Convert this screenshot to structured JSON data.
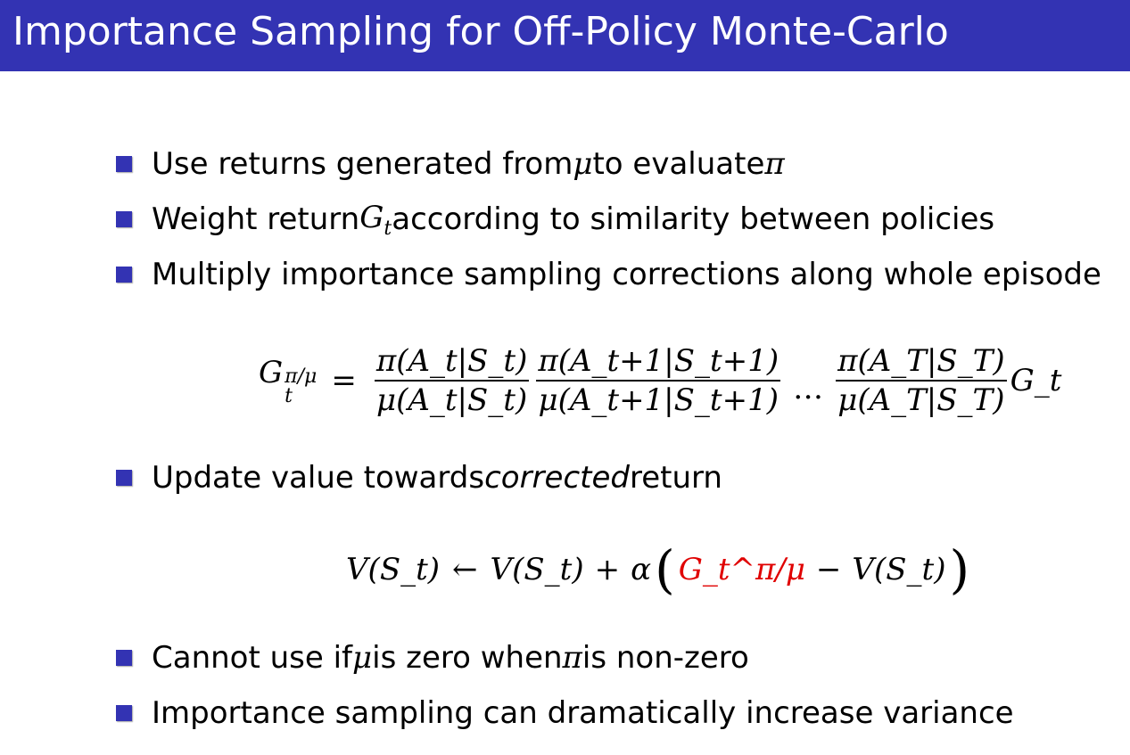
{
  "header": {
    "title": "Importance Sampling for Off-Policy Monte-Carlo"
  },
  "bullets_top": [
    {
      "pre": "Use returns generated from ",
      "sym1": "μ",
      "mid": " to evaluate ",
      "sym2": "π"
    },
    {
      "pre": "Weight return ",
      "sym1": "G",
      "sym1_sub": "t",
      "post": " according to similarity between policies"
    },
    {
      "text": "Multiply importance sampling corrections along whole episode"
    }
  ],
  "equation1": {
    "lhs": "G",
    "lhs_sub": "t",
    "lhs_sup": "π/μ",
    "equals": "=",
    "frac1_num": "π(A_t|S_t)",
    "frac1_den": "μ(A_t|S_t)",
    "frac2_num": "π(A_t+1|S_t+1)",
    "frac2_den": "μ(A_t+1|S_t+1)",
    "dots": "…",
    "frac3_num": "π(A_T|S_T)",
    "frac3_den": "μ(A_T|S_T)",
    "tail": "G_t"
  },
  "bullet_mid": {
    "pre": "Update value towards ",
    "emph": "corrected",
    "post": " return"
  },
  "equation2": {
    "lhs": "V(S_t)",
    "arrow": "←",
    "rhs1": "V(S_t)",
    "plus": "+",
    "alpha": "α",
    "target": "G_t^π/μ",
    "minus": "−",
    "rhs2": "V(S_t)"
  },
  "bullets_bottom": [
    {
      "pre": "Cannot use if ",
      "sym1": "μ",
      "mid": " is zero when ",
      "sym2": "π",
      "post": " is non-zero"
    },
    {
      "text": "Importance sampling can dramatically increase variance"
    }
  ],
  "colors": {
    "header_bg": "#3333b3",
    "bullet": "#3333b3",
    "highlight": "#e00000"
  }
}
